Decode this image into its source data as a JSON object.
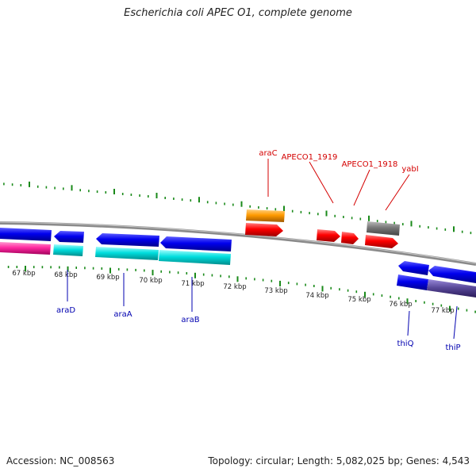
{
  "title": "Escherichia coli APEC O1, complete genome",
  "footer": {
    "accession": "Accession: NC_008563",
    "summary": "Topology: circular; Length: 5,082,025 bp; Genes: 4,543"
  },
  "colors": {
    "backbone": "#8a8a8a",
    "ticks": "#1a8a1a",
    "forward_label": "#d40000",
    "reverse_label": "#0000b0",
    "orange": "#ff9a00",
    "red": "#ff0000",
    "gray": "#777777",
    "blue": "#0000ee",
    "cyan": "#00dede",
    "magenta": "#ff2aa0",
    "slate": "#5a4a9a"
  },
  "kbp_labels": [
    "67 kbp",
    "68 kbp",
    "69 kbp",
    "70 kbp",
    "71 kbp",
    "72 kbp",
    "73 kbp",
    "74 kbp",
    "75 kbp",
    "76 kbp",
    "77 kbp"
  ],
  "gene_labels": {
    "araC": "araC",
    "apeco1_1919": "APECO1_1919",
    "apeco1_1918": "APECO1_1918",
    "yabI": "yabI",
    "araD": "araD",
    "araA": "araA",
    "araB": "araB",
    "thiQ": "thiQ",
    "thiP": "thiP"
  }
}
